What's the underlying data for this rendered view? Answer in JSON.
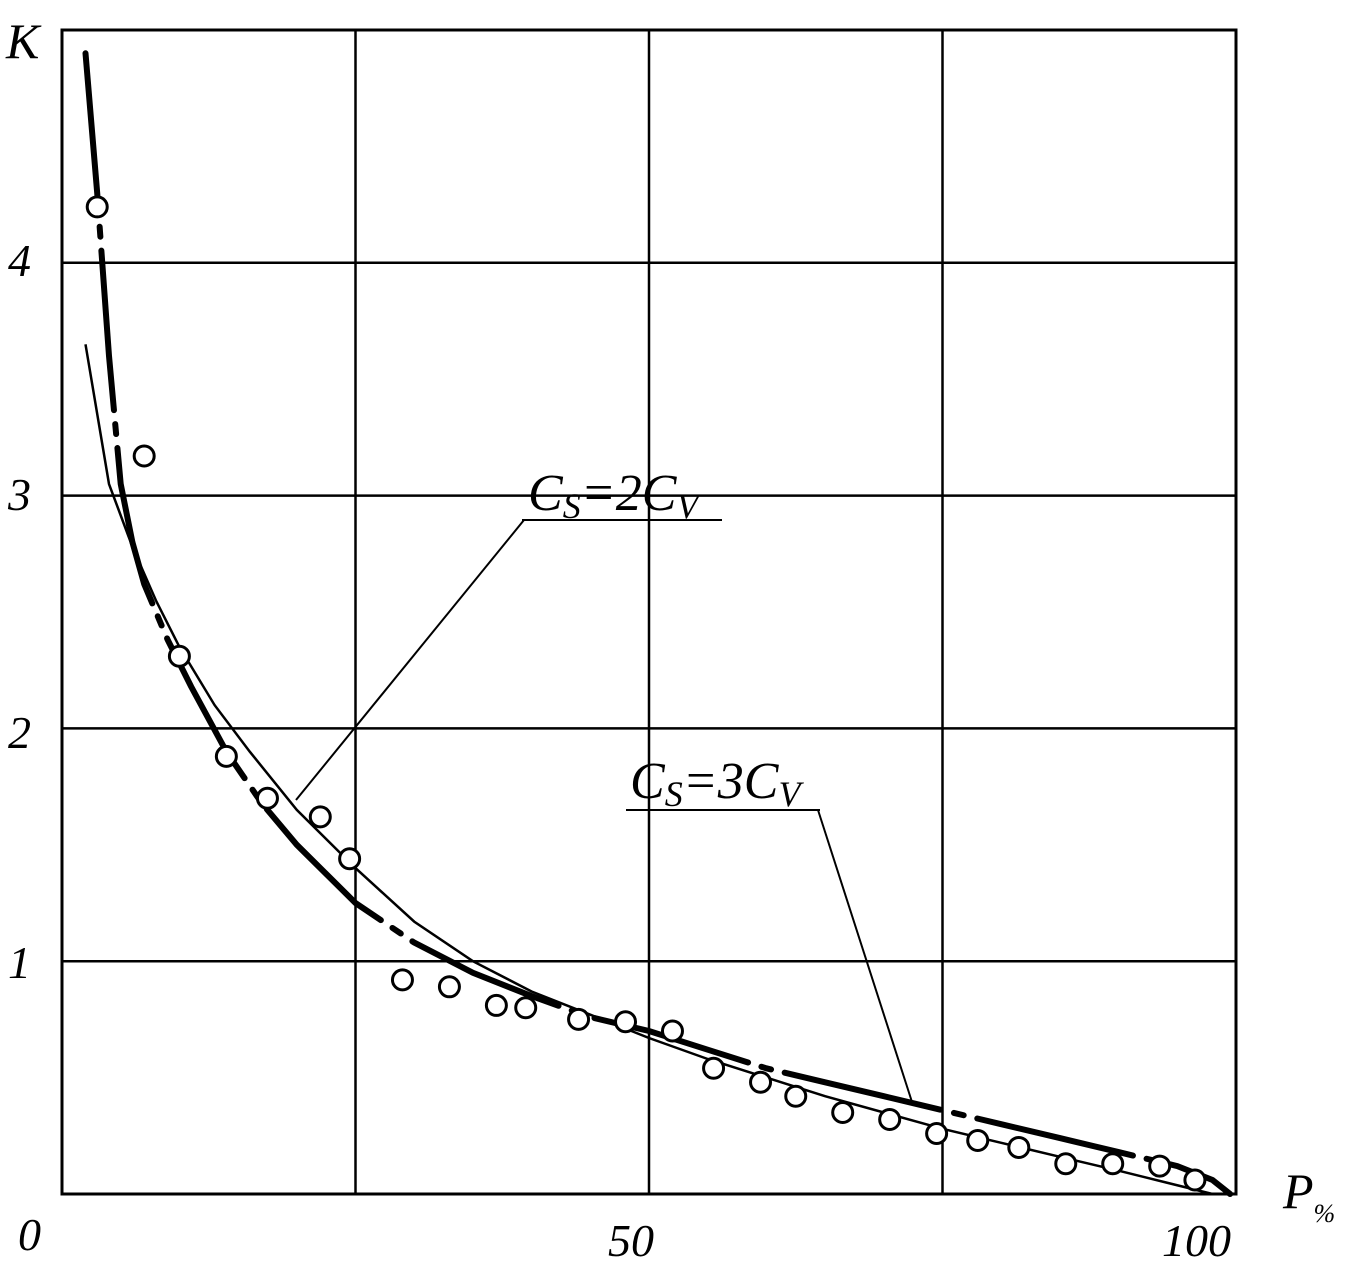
{
  "chart_data": {
    "type": "scatter",
    "title": "",
    "ylabel": "K",
    "xlabel_main": "P",
    "xlabel_sub": "%",
    "xlim": [
      0,
      100
    ],
    "ylim": [
      0,
      5
    ],
    "x_ticks": [
      "0",
      "50",
      "100"
    ],
    "y_ticks": [
      "1",
      "2",
      "3",
      "4"
    ],
    "grid": true,
    "grid_x": [
      0,
      25,
      50,
      75,
      100
    ],
    "grid_y": [
      0,
      1,
      2,
      3,
      4,
      5
    ],
    "series": [
      {
        "kind": "points",
        "points": [
          [
            3.0,
            4.24
          ],
          [
            7.0,
            3.17
          ],
          [
            10.0,
            2.31
          ],
          [
            14.0,
            1.88
          ],
          [
            17.5,
            1.7
          ],
          [
            22.0,
            1.62
          ],
          [
            24.5,
            1.44
          ],
          [
            29.0,
            0.92
          ],
          [
            33.0,
            0.89
          ],
          [
            37.0,
            0.81
          ],
          [
            39.5,
            0.8
          ],
          [
            44.0,
            0.75
          ],
          [
            48.0,
            0.74
          ],
          [
            52.0,
            0.7
          ],
          [
            55.5,
            0.54
          ],
          [
            59.5,
            0.48
          ],
          [
            62.5,
            0.42
          ],
          [
            66.5,
            0.35
          ],
          [
            70.5,
            0.32
          ],
          [
            74.5,
            0.26
          ],
          [
            78.0,
            0.23
          ],
          [
            81.5,
            0.2
          ],
          [
            85.5,
            0.13
          ],
          [
            89.5,
            0.13
          ],
          [
            93.5,
            0.12
          ],
          [
            96.5,
            0.06
          ]
        ]
      },
      {
        "kind": "curve",
        "label_main": "C",
        "label_sub1": "S",
        "label_mid": "=2C",
        "label_sub2": "V",
        "points": [
          [
            2.0,
            3.65
          ],
          [
            4.0,
            3.05
          ],
          [
            6.0,
            2.78
          ],
          [
            8.0,
            2.55
          ],
          [
            10.0,
            2.35
          ],
          [
            13.0,
            2.1
          ],
          [
            16.0,
            1.9
          ],
          [
            20.0,
            1.65
          ],
          [
            25.0,
            1.4
          ],
          [
            30.0,
            1.17
          ],
          [
            35.0,
            1.0
          ],
          [
            40.0,
            0.87
          ],
          [
            45.0,
            0.77
          ],
          [
            50.0,
            0.67
          ],
          [
            55.0,
            0.58
          ],
          [
            60.0,
            0.5
          ],
          [
            65.0,
            0.42
          ],
          [
            70.0,
            0.35
          ],
          [
            75.0,
            0.28
          ],
          [
            80.0,
            0.22
          ],
          [
            85.0,
            0.16
          ],
          [
            90.0,
            0.1
          ],
          [
            94.0,
            0.05
          ],
          [
            98.0,
            0.0
          ]
        ]
      },
      {
        "kind": "curve",
        "label_main": "C",
        "label_sub1": "S",
        "label_mid": "=3C",
        "label_sub2": "V",
        "points": [
          [
            2.0,
            4.9
          ],
          [
            3.0,
            4.3
          ],
          [
            4.0,
            3.6
          ],
          [
            5.0,
            3.05
          ],
          [
            6.0,
            2.8
          ],
          [
            7.0,
            2.62
          ],
          [
            9.0,
            2.38
          ],
          [
            11.0,
            2.18
          ],
          [
            14.0,
            1.9
          ],
          [
            17.0,
            1.68
          ],
          [
            20.0,
            1.5
          ],
          [
            25.0,
            1.25
          ],
          [
            30.0,
            1.08
          ],
          [
            35.0,
            0.95
          ],
          [
            40.0,
            0.85
          ],
          [
            45.0,
            0.76
          ],
          [
            50.0,
            0.7
          ],
          [
            55.0,
            0.62
          ],
          [
            60.0,
            0.54
          ],
          [
            65.0,
            0.48
          ],
          [
            70.0,
            0.42
          ],
          [
            75.0,
            0.36
          ],
          [
            80.0,
            0.3
          ],
          [
            85.0,
            0.24
          ],
          [
            90.0,
            0.18
          ],
          [
            95.0,
            0.12
          ],
          [
            98.0,
            0.06
          ],
          [
            99.5,
            0.0
          ]
        ]
      }
    ]
  }
}
